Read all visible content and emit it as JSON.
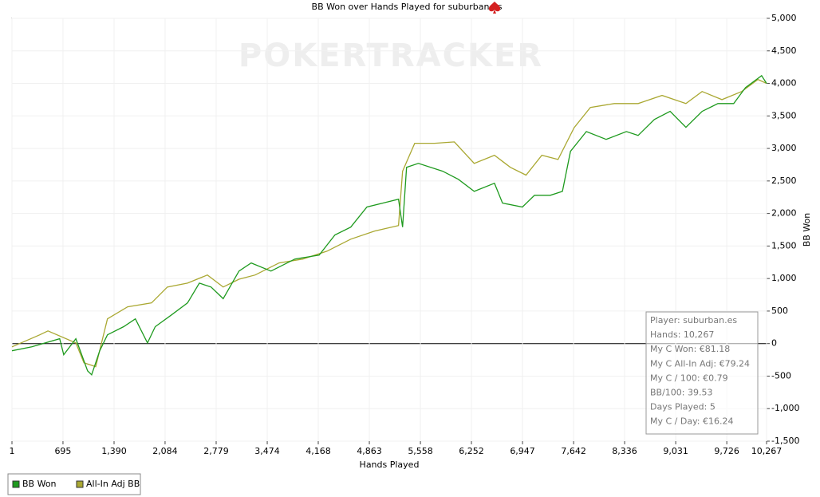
{
  "chart_data": {
    "type": "line",
    "title": "BB Won over Hands Played for suburban.es",
    "watermark": "POKERTRACKER",
    "x_label": "Hands Played",
    "y_label": "BB Won",
    "xlim": [
      1,
      10267
    ],
    "ylim": [
      -1500,
      5000
    ],
    "grid": true,
    "legend": "bottom-left",
    "xticks": [
      1,
      695,
      {
        "value": 1390,
        "label": "1,390"
      },
      {
        "value": 2084,
        "label": "2,084"
      },
      {
        "value": 2779,
        "label": "2,779"
      },
      {
        "value": 3474,
        "label": "3,474"
      },
      {
        "value": 4168,
        "label": "4,168"
      },
      {
        "value": 4863,
        "label": "4,863"
      },
      {
        "value": 5558,
        "label": "5,558"
      },
      {
        "value": 6252,
        "label": "6,252"
      },
      {
        "value": 6947,
        "label": "6,947"
      },
      {
        "value": 7642,
        "label": "7,642"
      },
      {
        "value": 8336,
        "label": "8,336"
      },
      {
        "value": 9031,
        "label": "9,031"
      },
      {
        "value": 9726,
        "label": "9,726"
      },
      {
        "value": 10267,
        "label": "10,267"
      }
    ],
    "yticks": [
      {
        "value": -1500,
        "label": "-1,500"
      },
      {
        "value": -1000,
        "label": "-1,000"
      },
      -500,
      0,
      500,
      {
        "value": 1000,
        "label": "1,000"
      },
      {
        "value": 1500,
        "label": "1,500"
      },
      {
        "value": 2000,
        "label": "2,000"
      },
      {
        "value": 2500,
        "label": "2,500"
      },
      {
        "value": 3000,
        "label": "3,000"
      },
      {
        "value": 3500,
        "label": "3,500"
      },
      {
        "value": 4000,
        "label": "4,000"
      },
      {
        "value": 4500,
        "label": "4,500"
      },
      {
        "value": 5000,
        "label": "5,000"
      }
    ],
    "stats": [
      "Player: suburban.es",
      "Hands: 10,267",
      "My C Won: €81.18",
      "My C All-In Adj: €79.24",
      "My C / 100: €0.79",
      "BB/100: 39.53",
      "Days Played: 5",
      "My C / Day: €16.24"
    ],
    "series": [
      {
        "name": "BB Won",
        "color": "#1e9a1e",
        "x": [
          1,
          270,
          650,
          705,
          870,
          1030,
          1085,
          1195,
          1300,
          1520,
          1680,
          1845,
          1950,
          2170,
          2390,
          2550,
          2710,
          2875,
          3090,
          3255,
          3525,
          3850,
          4180,
          4395,
          4610,
          4830,
          5045,
          5260,
          5315,
          5370,
          5530,
          5860,
          6075,
          6290,
          6565,
          6675,
          6945,
          7110,
          7325,
          7490,
          7600,
          7815,
          8085,
          8360,
          8520,
          8740,
          8955,
          9170,
          9390,
          9605,
          9820,
          9980,
          10200,
          10267
        ],
        "values": [
          -110,
          -50,
          75,
          -170,
          75,
          -420,
          -480,
          -110,
          135,
          260,
          380,
          10,
          260,
          440,
          625,
          930,
          870,
          690,
          1115,
          1240,
          1115,
          1300,
          1360,
          1670,
          1790,
          2100,
          2160,
          2220,
          1790,
          2710,
          2770,
          2650,
          2525,
          2340,
          2465,
          2160,
          2100,
          2280,
          2280,
          2340,
          2955,
          3260,
          3140,
          3260,
          3200,
          3445,
          3570,
          3325,
          3570,
          3690,
          3690,
          3935,
          4120,
          4000
        ]
      },
      {
        "name": "All-In Adj BB",
        "color": "#aaa832",
        "x": [
          1,
          380,
          490,
          870,
          980,
          1140,
          1300,
          1575,
          1900,
          2115,
          2390,
          2660,
          2875,
          3090,
          3310,
          3635,
          3960,
          4285,
          4610,
          4935,
          5260,
          5315,
          5480,
          5750,
          6020,
          6290,
          6565,
          6780,
          6995,
          7210,
          7430,
          7650,
          7870,
          8195,
          8520,
          8845,
          9170,
          9390,
          9660,
          9930,
          10150,
          10267
        ],
        "values": [
          -50,
          135,
          195,
          10,
          -295,
          -355,
          380,
          565,
          625,
          870,
          930,
          1055,
          870,
          990,
          1055,
          1240,
          1300,
          1420,
          1605,
          1730,
          1815,
          2650,
          3080,
          3080,
          3100,
          2770,
          2895,
          2710,
          2590,
          2895,
          2830,
          3320,
          3630,
          3690,
          3690,
          3815,
          3690,
          3875,
          3750,
          3875,
          4060,
          4000
        ]
      }
    ]
  }
}
